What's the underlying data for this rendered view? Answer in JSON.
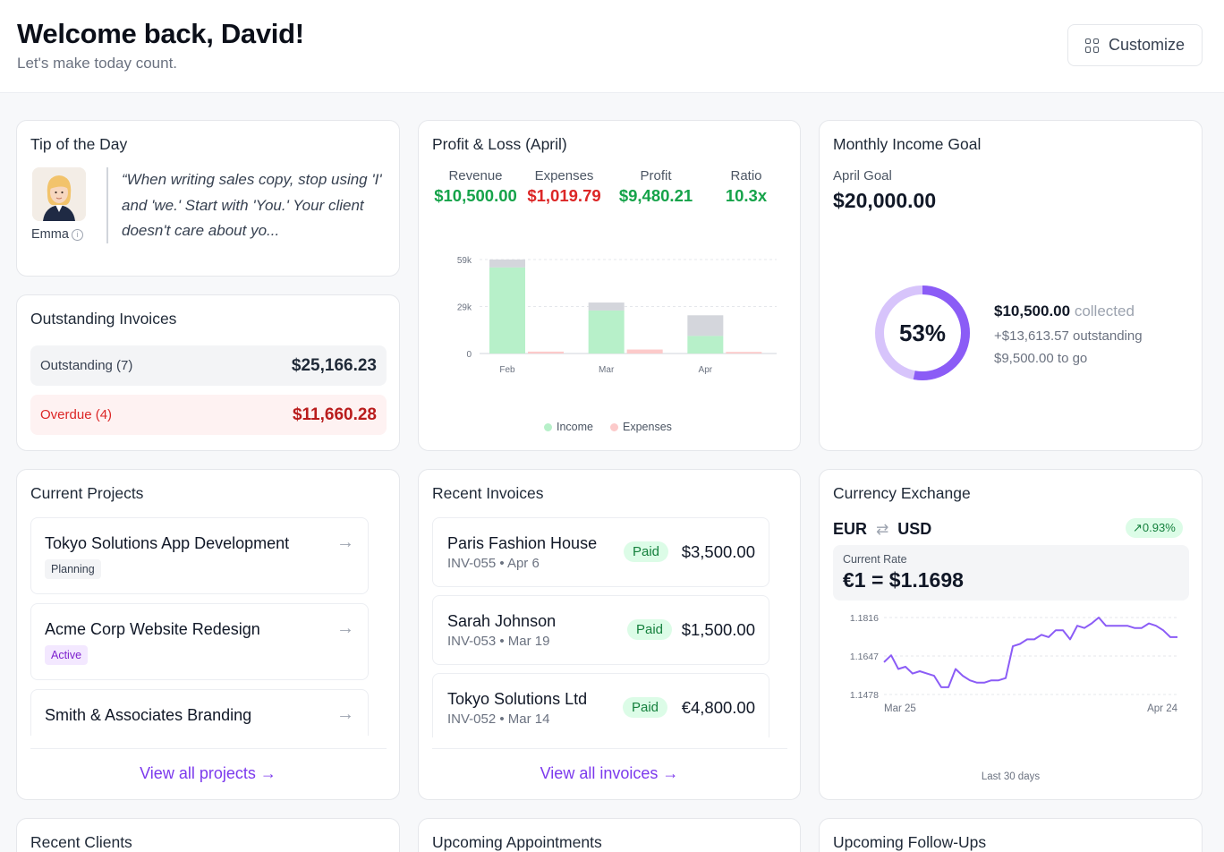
{
  "header": {
    "title": "Welcome back, David!",
    "subtitle": "Let's make today count.",
    "customize_label": "Customize"
  },
  "tip": {
    "title": "Tip of the Day",
    "author": "Emma",
    "quote": "“When writing sales copy, stop using 'I' and 'we.' Start with 'You.' Your client doesn't care about yo..."
  },
  "outstanding": {
    "title": "Outstanding Invoices",
    "rows": [
      {
        "label": "Outstanding (7)",
        "amount": "$25,166.23"
      },
      {
        "label": "Overdue (4)",
        "amount": "$11,660.28"
      }
    ]
  },
  "profit_loss": {
    "title": "Profit & Loss (April)",
    "stats": [
      {
        "label": "Revenue",
        "value": "$10,500.00",
        "color": "#16a34a"
      },
      {
        "label": "Expenses",
        "value": "$1,019.79",
        "color": "#dc2626"
      },
      {
        "label": "Profit",
        "value": "$9,480.21",
        "color": "#16a34a"
      },
      {
        "label": "Ratio",
        "value": "10.3x",
        "color": "#16a34a"
      }
    ],
    "legend": {
      "income": "Income",
      "expenses": "Expenses"
    }
  },
  "chart_data": {
    "type": "bar",
    "categories": [
      "Feb",
      "Mar",
      "Apr"
    ],
    "y_ticks": [
      "59k",
      "29k",
      "0"
    ],
    "ylim": [
      0,
      59000
    ],
    "series": [
      {
        "name": "Income",
        "values": [
          54000,
          27000,
          11000
        ],
        "color": "#b7f0c9"
      },
      {
        "name": "Expenses",
        "values": [
          1200,
          2500,
          1000
        ],
        "color": "#fccaca"
      }
    ],
    "target_caps": [
      59000,
      32000,
      24000
    ],
    "cap_color": "#d4d6dc",
    "grid": true,
    "legend": "bottom"
  },
  "goal": {
    "title": "Monthly Income Goal",
    "period_label": "April Goal",
    "amount": "$20,000.00",
    "percent_label": "53%",
    "fraction": 0.53,
    "collected_amount": "$10,500.00",
    "collected_word": "collected",
    "outstanding": "+$13,613.57 outstanding",
    "to_go": "$9,500.00 to go"
  },
  "projects": {
    "title": "Current Projects",
    "items": [
      {
        "name": "Tokyo Solutions App Development",
        "tag": "Planning"
      },
      {
        "name": "Acme Corp Website Redesign",
        "tag": "Active"
      },
      {
        "name": "Smith & Associates Branding",
        "tag": ""
      }
    ],
    "view_all": "View all projects →"
  },
  "recent_invoices": {
    "title": "Recent Invoices",
    "items": [
      {
        "client": "Paris Fashion House",
        "meta": "INV-055 • Apr 6",
        "status": "Paid",
        "amount": "$3,500.00"
      },
      {
        "client": "Sarah Johnson",
        "meta": "INV-053 • Mar 19",
        "status": "Paid",
        "amount": "$1,500.00"
      },
      {
        "client": "Tokyo Solutions Ltd",
        "meta": "INV-052 • Mar 14",
        "status": "Paid",
        "amount": "€4,800.00"
      }
    ],
    "view_all": "View all invoices →"
  },
  "currency": {
    "title": "Currency Exchange",
    "from": "EUR",
    "to": "USD",
    "change": "0.93%",
    "rate_label": "Current Rate",
    "rate_value": "€1 = $1.1698",
    "y_ticks": [
      "1.1816",
      "1.1647",
      "1.1478"
    ],
    "x_start": "Mar 25",
    "x_end": "Apr 24",
    "footer": "Last 30 days",
    "ylim": [
      1.1478,
      1.1816
    ],
    "series": [
      1.162,
      1.165,
      1.159,
      1.16,
      1.157,
      1.158,
      1.157,
      1.156,
      1.151,
      1.151,
      1.159,
      1.156,
      1.154,
      1.153,
      1.153,
      1.154,
      1.154,
      1.155,
      1.169,
      1.17,
      1.172,
      1.172,
      1.174,
      1.173,
      1.176,
      1.176,
      1.172,
      1.178,
      1.177,
      1.179,
      1.1816,
      1.178,
      1.178,
      1.178,
      1.178,
      1.177,
      1.177,
      1.179,
      1.178,
      1.176,
      1.173,
      1.173
    ]
  },
  "bottom_cards": {
    "clients": "Recent Clients",
    "appointments": "Upcoming Appointments",
    "followups": "Upcoming Follow-Ups"
  }
}
